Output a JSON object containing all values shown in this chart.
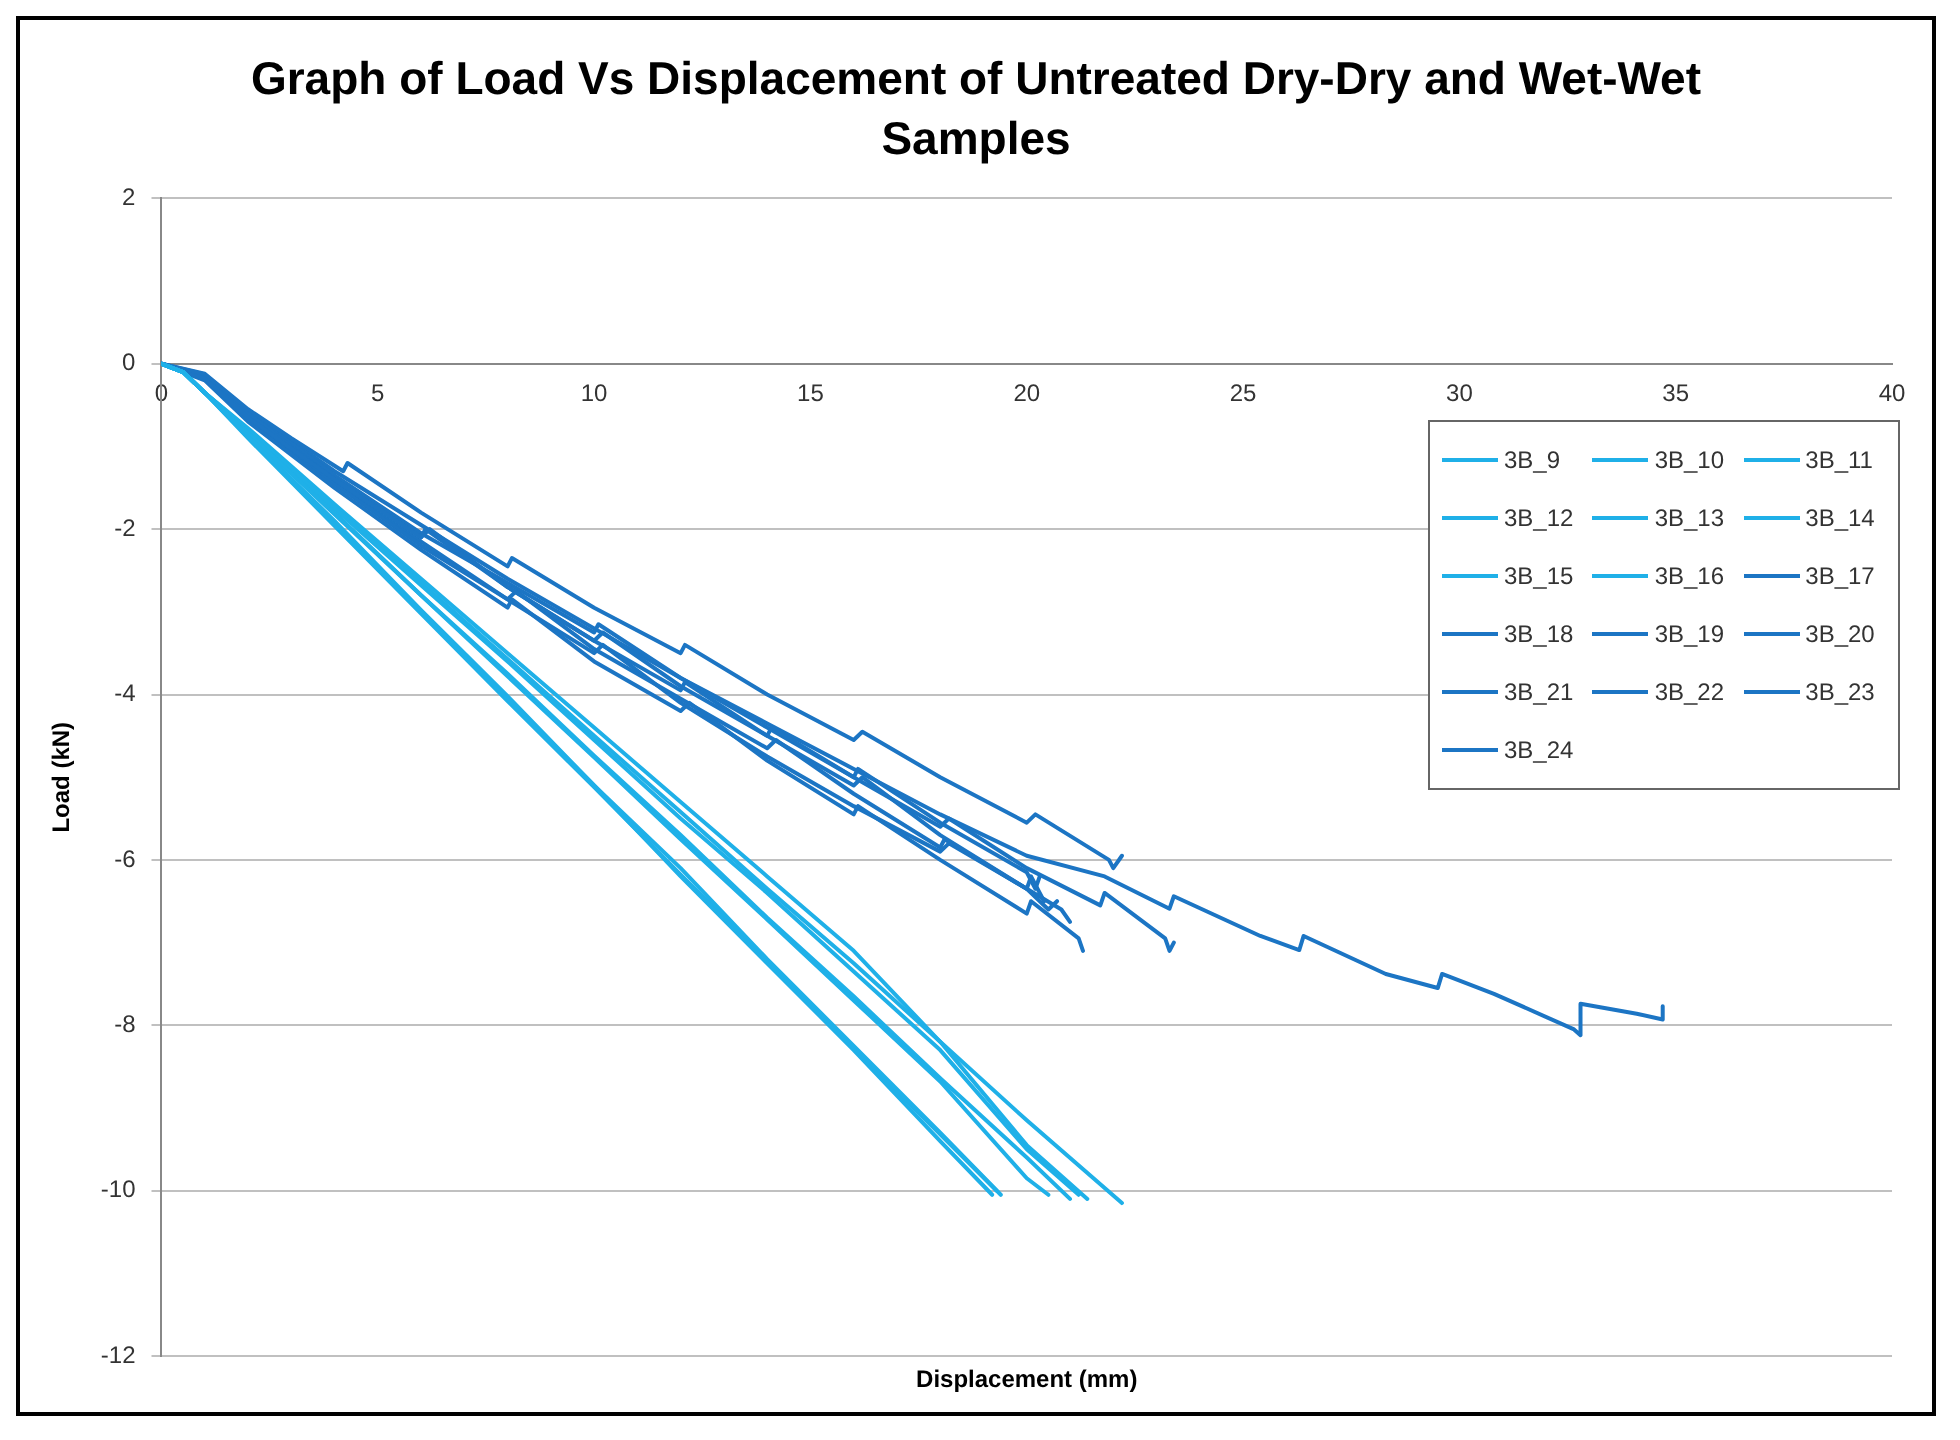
{
  "chart_data": {
    "type": "line",
    "title": "Graph of Load Vs Displacement of Untreated Dry-Dry and Wet-Wet Samples",
    "xlabel": "Displacement (mm)",
    "ylabel": "Load (kN)",
    "xlim": [
      0,
      40
    ],
    "xticks": [
      0,
      5,
      10,
      15,
      20,
      25,
      30,
      35,
      40
    ],
    "ylim": [
      -12,
      2
    ],
    "yticks": [
      -12,
      -10,
      -8,
      -6,
      -4,
      -2,
      0,
      2
    ],
    "grid": "y",
    "legend": "top right",
    "marker": "none",
    "line_style": "solid",
    "series": [
      {
        "name": "3B_9",
        "color": "#1fb0e8",
        "x": [
          0,
          0.5,
          1,
          2,
          4,
          6,
          8,
          10,
          12,
          14,
          16,
          18,
          19.2
        ],
        "values": [
          0,
          -0.1,
          -0.35,
          -0.88,
          -1.95,
          -3.0,
          -4.05,
          -5.1,
          -6.2,
          -7.25,
          -8.3,
          -9.4,
          -10.05
        ]
      },
      {
        "name": "3B_10",
        "color": "#1fb0e8",
        "x": [
          0,
          0.5,
          1,
          2,
          4,
          6,
          8,
          10,
          12,
          14,
          16,
          18,
          19.4
        ],
        "values": [
          0,
          -0.1,
          -0.35,
          -0.88,
          -1.9,
          -2.98,
          -4.02,
          -5.1,
          -6.1,
          -7.2,
          -8.25,
          -9.3,
          -10.05
        ]
      },
      {
        "name": "3B_11",
        "color": "#1fb0e8",
        "x": [
          0,
          0.5,
          1,
          2,
          4,
          6,
          8,
          10,
          12,
          14,
          16,
          18,
          20,
          20.5
        ],
        "values": [
          0,
          -0.1,
          -0.35,
          -0.84,
          -1.82,
          -2.8,
          -3.78,
          -4.76,
          -5.75,
          -6.72,
          -7.7,
          -8.68,
          -9.85,
          -10.05
        ]
      },
      {
        "name": "3B_12",
        "color": "#1fb0e8",
        "x": [
          0,
          0.5,
          1,
          2,
          4,
          6,
          8,
          10,
          12,
          14,
          16,
          18,
          20,
          21.0
        ],
        "values": [
          0,
          -0.1,
          -0.35,
          -0.84,
          -1.8,
          -2.8,
          -3.75,
          -4.74,
          -5.7,
          -6.7,
          -7.65,
          -8.64,
          -9.6,
          -10.1
        ]
      },
      {
        "name": "3B_13",
        "color": "#1fb0e8",
        "x": [
          0,
          0.5,
          1,
          2,
          4,
          6,
          8,
          10,
          12,
          14,
          16,
          18,
          20,
          21.2
        ],
        "values": [
          0,
          -0.1,
          -0.35,
          -0.8,
          -1.75,
          -2.68,
          -3.6,
          -4.55,
          -5.5,
          -6.4,
          -7.35,
          -8.3,
          -9.5,
          -10.05
        ]
      },
      {
        "name": "3B_14",
        "color": "#1fb0e8",
        "x": [
          0,
          0.5,
          1,
          2,
          4,
          6,
          8,
          10,
          12,
          14,
          16,
          18,
          20,
          21.4
        ],
        "values": [
          0,
          -0.1,
          -0.35,
          -0.8,
          -1.72,
          -2.65,
          -3.57,
          -4.5,
          -5.42,
          -6.35,
          -7.25,
          -8.2,
          -9.45,
          -10.1
        ]
      },
      {
        "name": "3B_15",
        "color": "#1fb0e8",
        "x": [
          0,
          0.5,
          1,
          2,
          4,
          6,
          8,
          10,
          12,
          14,
          16,
          18,
          20,
          22.2
        ],
        "values": [
          0,
          -0.1,
          -0.35,
          -0.78,
          -1.7,
          -2.6,
          -3.5,
          -4.4,
          -5.3,
          -6.2,
          -7.1,
          -8.2,
          -9.15,
          -10.15
        ]
      },
      {
        "name": "3B_16",
        "color": "#1fb0e8",
        "x": [
          0,
          0.5,
          1,
          2,
          4,
          6,
          8,
          10,
          12,
          14,
          16,
          18,
          19.3
        ],
        "values": [
          0,
          -0.1,
          -0.35,
          -0.9,
          -1.96,
          -3.02,
          -4.08,
          -5.12,
          -6.18,
          -7.22,
          -8.28,
          -9.32,
          -10.0
        ]
      },
      {
        "name": "3B_17",
        "color": "#1c75c4",
        "x": [
          0,
          1,
          2,
          3,
          4.2,
          4.3,
          6,
          8,
          8.1,
          10,
          12,
          12.1,
          14,
          16,
          16.2,
          18,
          20,
          20.2,
          21.9,
          22.0,
          22.2
        ],
        "values": [
          0,
          -0.12,
          -0.55,
          -0.9,
          -1.3,
          -1.2,
          -1.8,
          -2.45,
          -2.35,
          -2.95,
          -3.5,
          -3.4,
          -4.0,
          -4.55,
          -4.45,
          -5.0,
          -5.55,
          -5.45,
          -6.0,
          -6.1,
          -5.95
        ]
      },
      {
        "name": "3B_18",
        "color": "#1c75c4",
        "x": [
          0,
          1,
          2,
          4,
          6,
          6.1,
          8,
          10,
          10.2,
          12,
          14,
          14.1,
          16,
          18,
          18.2,
          20,
          21.7,
          21.8,
          23.2,
          23.3,
          23.4
        ],
        "values": [
          0,
          -0.18,
          -0.65,
          -1.4,
          -2.1,
          -2.0,
          -2.7,
          -3.35,
          -3.25,
          -3.9,
          -4.5,
          -4.4,
          -5.0,
          -5.6,
          -5.5,
          -6.1,
          -6.55,
          -6.4,
          -6.95,
          -7.1,
          -7.0
        ]
      },
      {
        "name": "3B_19",
        "color": "#1c75c4",
        "x": [
          0,
          1,
          2,
          4,
          6,
          8,
          8.1,
          10,
          12,
          12.2,
          14,
          16,
          16.1,
          18,
          20,
          20.1,
          21.2,
          21.3
        ],
        "values": [
          0,
          -0.2,
          -0.7,
          -1.5,
          -2.25,
          -2.95,
          -2.85,
          -3.6,
          -4.2,
          -4.1,
          -4.8,
          -5.45,
          -5.35,
          -6.0,
          -6.65,
          -6.5,
          -6.95,
          -7.1
        ]
      },
      {
        "name": "3B_20",
        "color": "#1c75c4",
        "x": [
          0,
          1,
          2,
          4,
          6,
          6.2,
          8,
          10,
          12,
          12.1,
          14,
          16,
          16.2,
          18,
          20,
          20.1,
          20.4
        ],
        "values": [
          0,
          -0.15,
          -0.6,
          -1.4,
          -2.1,
          -2.0,
          -2.7,
          -3.35,
          -3.95,
          -3.85,
          -4.5,
          -5.1,
          -5.0,
          -5.7,
          -6.35,
          -6.2,
          -6.5
        ]
      },
      {
        "name": "3B_21",
        "color": "#1c75c4",
        "x": [
          0,
          1,
          2,
          4,
          6,
          8,
          8.2,
          10,
          12,
          14,
          14.2,
          16,
          18,
          18.1,
          20,
          20.5,
          20.7
        ],
        "values": [
          0,
          -0.17,
          -0.62,
          -1.45,
          -2.2,
          -2.85,
          -2.75,
          -3.45,
          -4.05,
          -4.65,
          -4.55,
          -5.2,
          -5.85,
          -5.75,
          -6.35,
          -6.6,
          -6.5
        ]
      },
      {
        "name": "3B_22",
        "color": "#1c75c4",
        "x": [
          0,
          1,
          2,
          4,
          6,
          8,
          10,
          10.1,
          12,
          14,
          16,
          16.1,
          18,
          20,
          20.2,
          20.3
        ],
        "values": [
          0,
          -0.14,
          -0.58,
          -1.35,
          -2.05,
          -2.65,
          -3.25,
          -3.15,
          -3.8,
          -4.4,
          -5.0,
          -4.9,
          -5.55,
          -6.15,
          -6.35,
          -6.2
        ]
      },
      {
        "name": "3B_23",
        "color": "#1c75c4",
        "x": [
          0,
          1,
          2,
          4,
          6,
          8,
          10,
          10.2,
          12,
          14,
          16,
          18,
          18.2,
          20,
          20.8,
          21.0
        ],
        "values": [
          0,
          -0.16,
          -0.66,
          -1.45,
          -2.15,
          -2.85,
          -3.5,
          -3.4,
          -4.1,
          -4.75,
          -5.35,
          -5.9,
          -5.8,
          -6.35,
          -6.6,
          -6.75
        ]
      },
      {
        "name": "3B_24",
        "color": "#1c75c4",
        "x": [
          0,
          1,
          2,
          4,
          6,
          8,
          10,
          12,
          14,
          16,
          18,
          20,
          21.8,
          23.3,
          23.4,
          25.4,
          26.3,
          26.4,
          28.3,
          29.5,
          29.6,
          30.8,
          32.65,
          32.8,
          32.8,
          34.1,
          34.7,
          34.7
        ],
        "values": [
          0,
          -0.13,
          -0.57,
          -1.3,
          -1.95,
          -2.6,
          -3.2,
          -3.8,
          -4.35,
          -4.9,
          -5.45,
          -5.95,
          -6.2,
          -6.59,
          -6.44,
          -6.92,
          -7.09,
          -6.92,
          -7.38,
          -7.55,
          -7.38,
          -7.62,
          -8.05,
          -8.12,
          -7.74,
          -7.86,
          -7.93,
          -7.77
        ]
      }
    ]
  }
}
